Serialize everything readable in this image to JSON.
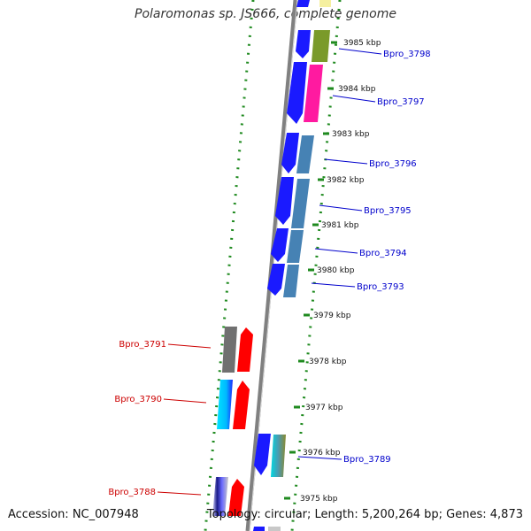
{
  "title": "Polaromonas sp. JS666, complete genome",
  "footer": {
    "accession": "Accession: NC_007948",
    "summary": "Topology: circular; Length: 5,200,264 bp; Genes: 4,873"
  },
  "ticks": [
    "3985 kbp",
    "3984 kbp",
    "3983 kbp",
    "3982 kbp",
    "3981 kbp",
    "3980 kbp",
    "3979 kbp",
    "3978 kbp",
    "3977 kbp",
    "3976 kbp",
    "3975 kbp"
  ],
  "genes_forward": [
    {
      "label": "Bpro_3798",
      "color": "#1a1aff"
    },
    {
      "label": "Bpro_3797",
      "color": "#1a1aff"
    },
    {
      "label": "Bpro_3796",
      "color": "#1a1aff"
    },
    {
      "label": "Bpro_3795",
      "color": "#1a1aff"
    },
    {
      "label": "Bpro_3794",
      "color": "#1a1aff"
    },
    {
      "label": "Bpro_3793",
      "color": "#1a1aff"
    },
    {
      "label": "Bpro_3789",
      "color": "#1a1aff"
    }
  ],
  "genes_reverse": [
    {
      "label": "Bpro_3791",
      "color": "#ff0000"
    },
    {
      "label": "Bpro_3790",
      "color": "#ff0000"
    },
    {
      "label": "Bpro_3788",
      "color": "#ff0000"
    }
  ],
  "colors": {
    "forward_label": "#0000cc",
    "reverse_label": "#cc0000",
    "backbone": "#808080",
    "gc_skew": "#1f8a1f"
  }
}
